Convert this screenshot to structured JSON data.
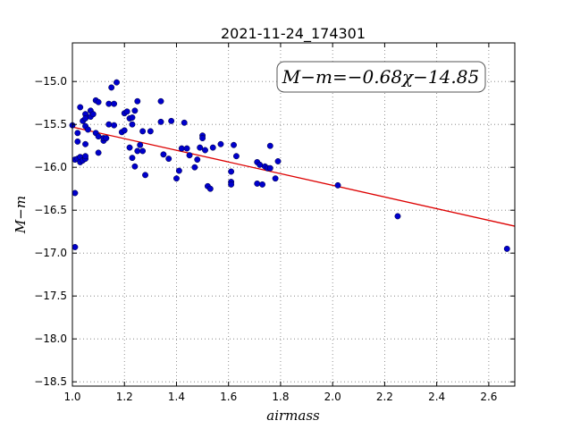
{
  "chart_data": {
    "type": "scatter",
    "title": "2021-11-24_174301",
    "xlabel": "airmass",
    "ylabel": "M−m",
    "xlim": [
      1.0,
      2.7
    ],
    "ylim": [
      -18.55,
      -14.55
    ],
    "xticks": [
      1.0,
      1.2,
      1.4,
      1.6,
      1.8,
      2.0,
      2.2,
      2.4,
      2.6
    ],
    "xtick_labels": [
      "1.0",
      "1.2",
      "1.4",
      "1.6",
      "1.8",
      "2.0",
      "2.2",
      "2.4",
      "2.6"
    ],
    "yticks": [
      -15.0,
      -15.5,
      -16.0,
      -16.5,
      -17.0,
      -17.5,
      -18.0,
      -18.5
    ],
    "ytick_labels": [
      "−15.0",
      "−15.5",
      "−16.0",
      "−16.5",
      "−17.0",
      "−17.5",
      "−18.0",
      "−18.5"
    ],
    "grid": true,
    "annotation": "M−m=−0.68χ−14.85",
    "fit": {
      "slope": -0.68,
      "intercept": -14.85,
      "color": "#dd0000"
    },
    "point_color": "#0000cc",
    "points": [
      [
        1.0,
        -15.51
      ],
      [
        1.01,
        -16.93
      ],
      [
        1.01,
        -16.3
      ],
      [
        1.01,
        -15.91
      ],
      [
        1.02,
        -15.7
      ],
      [
        1.02,
        -15.6
      ],
      [
        1.02,
        -15.9
      ],
      [
        1.03,
        -15.94
      ],
      [
        1.03,
        -15.3
      ],
      [
        1.03,
        -15.88
      ],
      [
        1.04,
        -15.46
      ],
      [
        1.04,
        -15.92
      ],
      [
        1.05,
        -15.38
      ],
      [
        1.05,
        -15.43
      ],
      [
        1.05,
        -15.52
      ],
      [
        1.05,
        -15.73
      ],
      [
        1.05,
        -15.9
      ],
      [
        1.05,
        -15.87
      ],
      [
        1.06,
        -15.56
      ],
      [
        1.07,
        -15.34
      ],
      [
        1.07,
        -15.41
      ],
      [
        1.08,
        -15.38
      ],
      [
        1.09,
        -15.22
      ],
      [
        1.09,
        -15.6
      ],
      [
        1.1,
        -15.64
      ],
      [
        1.1,
        -15.24
      ],
      [
        1.1,
        -15.83
      ],
      [
        1.12,
        -15.69
      ],
      [
        1.12,
        -15.66
      ],
      [
        1.13,
        -15.66
      ],
      [
        1.14,
        -15.26
      ],
      [
        1.14,
        -15.5
      ],
      [
        1.15,
        -15.07
      ],
      [
        1.16,
        -15.51
      ],
      [
        1.16,
        -15.26
      ],
      [
        1.17,
        -15.01
      ],
      [
        1.19,
        -15.59
      ],
      [
        1.2,
        -15.37
      ],
      [
        1.2,
        -15.57
      ],
      [
        1.21,
        -15.35
      ],
      [
        1.22,
        -15.43
      ],
      [
        1.22,
        -15.77
      ],
      [
        1.23,
        -15.5
      ],
      [
        1.23,
        -15.42
      ],
      [
        1.23,
        -15.89
      ],
      [
        1.24,
        -15.99
      ],
      [
        1.24,
        -15.34
      ],
      [
        1.25,
        -15.23
      ],
      [
        1.25,
        -15.81
      ],
      [
        1.26,
        -15.74
      ],
      [
        1.27,
        -15.58
      ],
      [
        1.27,
        -15.81
      ],
      [
        1.28,
        -16.09
      ],
      [
        1.3,
        -15.58
      ],
      [
        1.34,
        -15.23
      ],
      [
        1.34,
        -15.47
      ],
      [
        1.35,
        -15.85
      ],
      [
        1.37,
        -15.9
      ],
      [
        1.38,
        -15.46
      ],
      [
        1.4,
        -16.13
      ],
      [
        1.41,
        -16.04
      ],
      [
        1.42,
        -15.78
      ],
      [
        1.43,
        -15.48
      ],
      [
        1.44,
        -15.78
      ],
      [
        1.45,
        -15.86
      ],
      [
        1.47,
        -16.0
      ],
      [
        1.48,
        -15.91
      ],
      [
        1.49,
        -15.77
      ],
      [
        1.5,
        -15.63
      ],
      [
        1.5,
        -15.66
      ],
      [
        1.51,
        -15.8
      ],
      [
        1.52,
        -16.22
      ],
      [
        1.53,
        -16.25
      ],
      [
        1.54,
        -15.77
      ],
      [
        1.57,
        -15.73
      ],
      [
        1.61,
        -16.05
      ],
      [
        1.61,
        -16.17
      ],
      [
        1.61,
        -16.2
      ],
      [
        1.62,
        -15.74
      ],
      [
        1.63,
        -15.87
      ],
      [
        1.71,
        -16.19
      ],
      [
        1.71,
        -15.94
      ],
      [
        1.72,
        -15.97
      ],
      [
        1.73,
        -16.2
      ],
      [
        1.74,
        -15.99
      ],
      [
        1.75,
        -16.01
      ],
      [
        1.76,
        -15.75
      ],
      [
        1.76,
        -16.01
      ],
      [
        1.78,
        -16.13
      ],
      [
        1.79,
        -15.93
      ],
      [
        2.02,
        -16.21
      ],
      [
        2.25,
        -16.57
      ],
      [
        2.67,
        -16.95
      ]
    ]
  }
}
